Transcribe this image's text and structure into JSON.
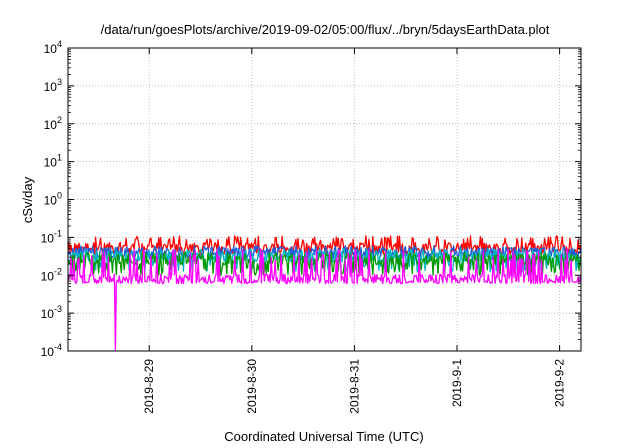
{
  "chart_data": {
    "type": "line",
    "title": "/data/run/goesPlots/archive/2019-09-02/05:00/flux/../bryn/5daysEarthData.plot",
    "xlabel": "Coordinated Universal Time (UTC)",
    "ylabel": "cSv/day",
    "yscale": "log",
    "ylim": [
      0.0001,
      10000
    ],
    "xlim": [
      "2019-08-28 05:00",
      "2019-09-02 05:00"
    ],
    "grid": true,
    "y_ticks": [
      {
        "value": 0.0001,
        "base": "10",
        "exp": "-4"
      },
      {
        "value": 0.001,
        "base": "10",
        "exp": "-3"
      },
      {
        "value": 0.01,
        "base": "10",
        "exp": "-2"
      },
      {
        "value": 0.1,
        "base": "10",
        "exp": "-1"
      },
      {
        "value": 1,
        "base": "10",
        "exp": "0"
      },
      {
        "value": 10,
        "base": "10",
        "exp": "1"
      },
      {
        "value": 100,
        "base": "10",
        "exp": "2"
      },
      {
        "value": 1000,
        "base": "10",
        "exp": "3"
      },
      {
        "value": 10000,
        "base": "10",
        "exp": "4"
      }
    ],
    "x_ticks": [
      "2019-8-29",
      "2019-8-30",
      "2019-8-31",
      "2019-9-1",
      "2019-9-2"
    ],
    "series": [
      {
        "color": "#ff0000",
        "typical": 0.055,
        "low": 0.035,
        "high": 0.11
      },
      {
        "color": "#1e5fd8",
        "typical": 0.04,
        "low": 0.025,
        "high": 0.06
      },
      {
        "color": "#00b8c0",
        "typical": 0.03,
        "low": 0.012,
        "high": 0.05
      },
      {
        "color": "#009900",
        "typical": 0.025,
        "low": 0.01,
        "high": 0.04
      },
      {
        "color": "#ff00ff",
        "typical": 0.008,
        "low": 0.006,
        "high": 0.05,
        "dip": {
          "x": "2019-08-28 16:00",
          "value": 0.0001
        }
      }
    ]
  }
}
